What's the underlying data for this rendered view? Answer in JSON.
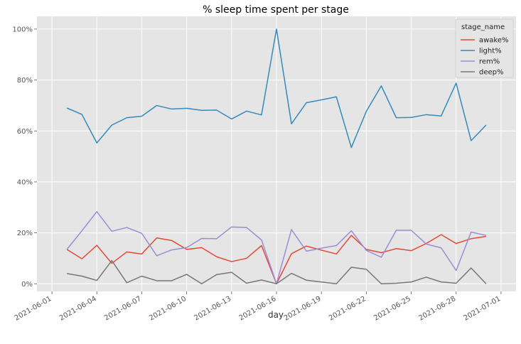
{
  "chart_data": {
    "type": "line",
    "title": "% sleep time spent per stage",
    "xlabel": "day",
    "ylabel": "",
    "legend_title": "stage_name",
    "legend_position": "top-right",
    "grid": true,
    "background": "#e5e5e5",
    "x_ticks": [
      "2021-06-01",
      "2021-06-04",
      "2021-06-07",
      "2021-06-10",
      "2021-06-13",
      "2021-06-16",
      "2021-06-19",
      "2021-06-22",
      "2021-06-25",
      "2021-06-28",
      "2021-07-01"
    ],
    "xlim": [
      "2021-05-31",
      "2021-07-02"
    ],
    "y_ticks": [
      0,
      20,
      40,
      60,
      80,
      100
    ],
    "y_tick_labels": [
      "0%",
      "20%",
      "40%",
      "60%",
      "80%",
      "100%"
    ],
    "ylim": [
      -3,
      105
    ],
    "x": [
      "2021-06-02",
      "2021-06-03",
      "2021-06-04",
      "2021-06-05",
      "2021-06-06",
      "2021-06-07",
      "2021-06-08",
      "2021-06-09",
      "2021-06-10",
      "2021-06-11",
      "2021-06-12",
      "2021-06-13",
      "2021-06-14",
      "2021-06-15",
      "2021-06-16",
      "2021-06-17",
      "2021-06-18",
      "2021-06-19",
      "2021-06-20",
      "2021-06-21",
      "2021-06-22",
      "2021-06-23",
      "2021-06-24",
      "2021-06-25",
      "2021-06-26",
      "2021-06-27",
      "2021-06-28",
      "2021-06-29",
      "2021-06-30"
    ],
    "series": [
      {
        "name": "awake%",
        "color": "#e24a33",
        "values": [
          13.5,
          9.8,
          15.1,
          8.0,
          12.5,
          11.7,
          18.0,
          17.0,
          13.5,
          14.2,
          10.6,
          8.7,
          10.0,
          15.0,
          0.0,
          11.8,
          14.8,
          13.2,
          11.7,
          19.0,
          13.5,
          12.2,
          13.8,
          13.0,
          15.8,
          19.3,
          15.8,
          17.7,
          18.6
        ]
      },
      {
        "name": "light%",
        "color": "#348abd",
        "values": [
          69.0,
          66.5,
          55.3,
          62.3,
          65.2,
          65.8,
          70.0,
          68.6,
          68.9,
          68.1,
          68.2,
          64.7,
          67.8,
          66.3,
          100.0,
          62.8,
          71.1,
          72.2,
          73.4,
          53.5,
          67.7,
          77.7,
          65.2,
          65.3,
          66.4,
          65.9,
          78.8,
          56.2,
          62.3
        ]
      },
      {
        "name": "rem%",
        "color": "#988ed5",
        "values": [
          13.5,
          20.8,
          28.3,
          20.6,
          22.1,
          19.8,
          11.0,
          13.3,
          14.2,
          17.8,
          17.7,
          22.3,
          22.1,
          17.2,
          0.0,
          21.3,
          12.8,
          14.0,
          15.0,
          20.8,
          13.1,
          10.4,
          21.0,
          21.0,
          15.6,
          14.1,
          5.2,
          20.3,
          19.0
        ]
      },
      {
        "name": "deep%",
        "color": "#777777",
        "values": [
          4.0,
          3.0,
          1.3,
          9.1,
          0.4,
          3.0,
          1.2,
          1.2,
          3.7,
          0.0,
          3.6,
          4.5,
          0.2,
          1.5,
          0.0,
          4.1,
          1.4,
          0.7,
          0.0,
          6.5,
          5.7,
          0.0,
          0.2,
          0.7,
          2.6,
          0.7,
          0.2,
          6.2,
          0.0
        ]
      }
    ]
  }
}
